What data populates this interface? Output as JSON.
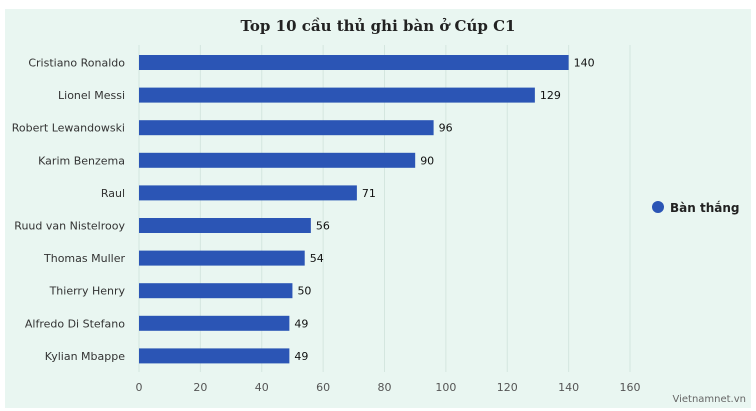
{
  "chart_data": {
    "type": "bar",
    "orientation": "horizontal",
    "title": "Top 10 cầu thủ ghi bàn ở Cúp C1",
    "categories": [
      "Cristiano Ronaldo",
      "Lionel Messi",
      "Robert Lewandowski",
      "Karim Benzema",
      "Raul",
      "Ruud van Nistelrooy",
      "Thomas Muller",
      "Thierry Henry",
      "Alfredo Di Stefano",
      "Kylian Mbappe"
    ],
    "series": [
      {
        "name": "Bàn thắng",
        "color": "#2b55b5",
        "values": [
          140,
          129,
          96,
          90,
          71,
          56,
          54,
          50,
          49,
          49
        ]
      }
    ],
    "xlim": [
      0,
      160
    ],
    "xticks": [
      0,
      20,
      40,
      60,
      80,
      100,
      120,
      140,
      160
    ],
    "grid": true,
    "legend_position": "right"
  },
  "credit": "Vietnamnet.vn",
  "colors": {
    "background": "#e9f6f1",
    "grid": "#d4e6df",
    "bar": "#2b55b5"
  }
}
